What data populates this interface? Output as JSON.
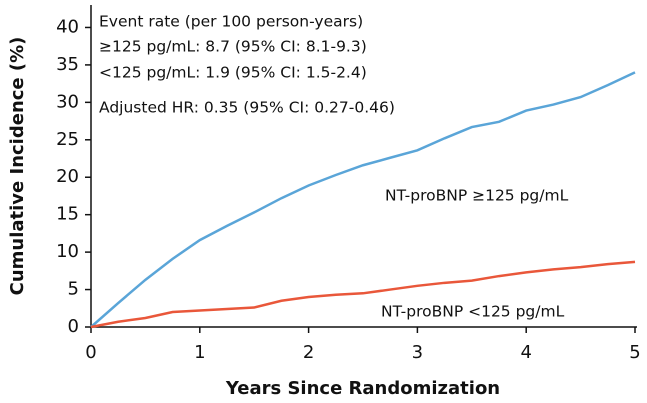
{
  "chart_data": {
    "type": "line",
    "x_label": "Years Since Randomization",
    "y_label": "Cumulative Incidence (%)",
    "annotations": [
      "Event rate (per 100 person-years)",
      "≥125 pg/mL: 8.7 (95% CI: 8.1-9.3)",
      "<125 pg/mL: 1.9 (95% CI: 1.5-2.4)",
      "Adjusted HR: 0.35 (95% CI: 0.27-0.46)"
    ],
    "x": [
      0,
      0.25,
      0.5,
      0.75,
      1,
      1.25,
      1.5,
      1.75,
      2,
      2.25,
      2.5,
      2.75,
      3,
      3.25,
      3.5,
      3.75,
      4,
      4.25,
      4.5,
      4.75,
      5
    ],
    "series": [
      {
        "name": "NT-proBNP ≥125 pg/mL",
        "color": "#5aa5d8",
        "values": [
          0,
          3.2,
          6.3,
          9.1,
          11.6,
          13.5,
          15.3,
          17.2,
          18.9,
          20.3,
          21.6,
          22.6,
          23.6,
          25.2,
          26.7,
          27.4,
          28.9,
          29.7,
          30.7,
          32.3,
          34
        ]
      },
      {
        "name": "NT-proBNP <125 pg/mL",
        "color": "#e9573a",
        "values": [
          0,
          0.7,
          1.2,
          2,
          2.2,
          2.4,
          2.6,
          3.5,
          4,
          4.3,
          4.5,
          5,
          5.5,
          5.9,
          6.2,
          6.8,
          7.3,
          7.7,
          8,
          8.4,
          8.7
        ]
      }
    ],
    "xlim": [
      0,
      5
    ],
    "xticks": [
      0,
      1,
      2,
      3,
      4,
      5
    ],
    "ylim": [
      0,
      43
    ],
    "yticks": [
      0,
      5,
      10,
      15,
      20,
      25,
      30,
      35,
      40
    ],
    "grid": false
  }
}
